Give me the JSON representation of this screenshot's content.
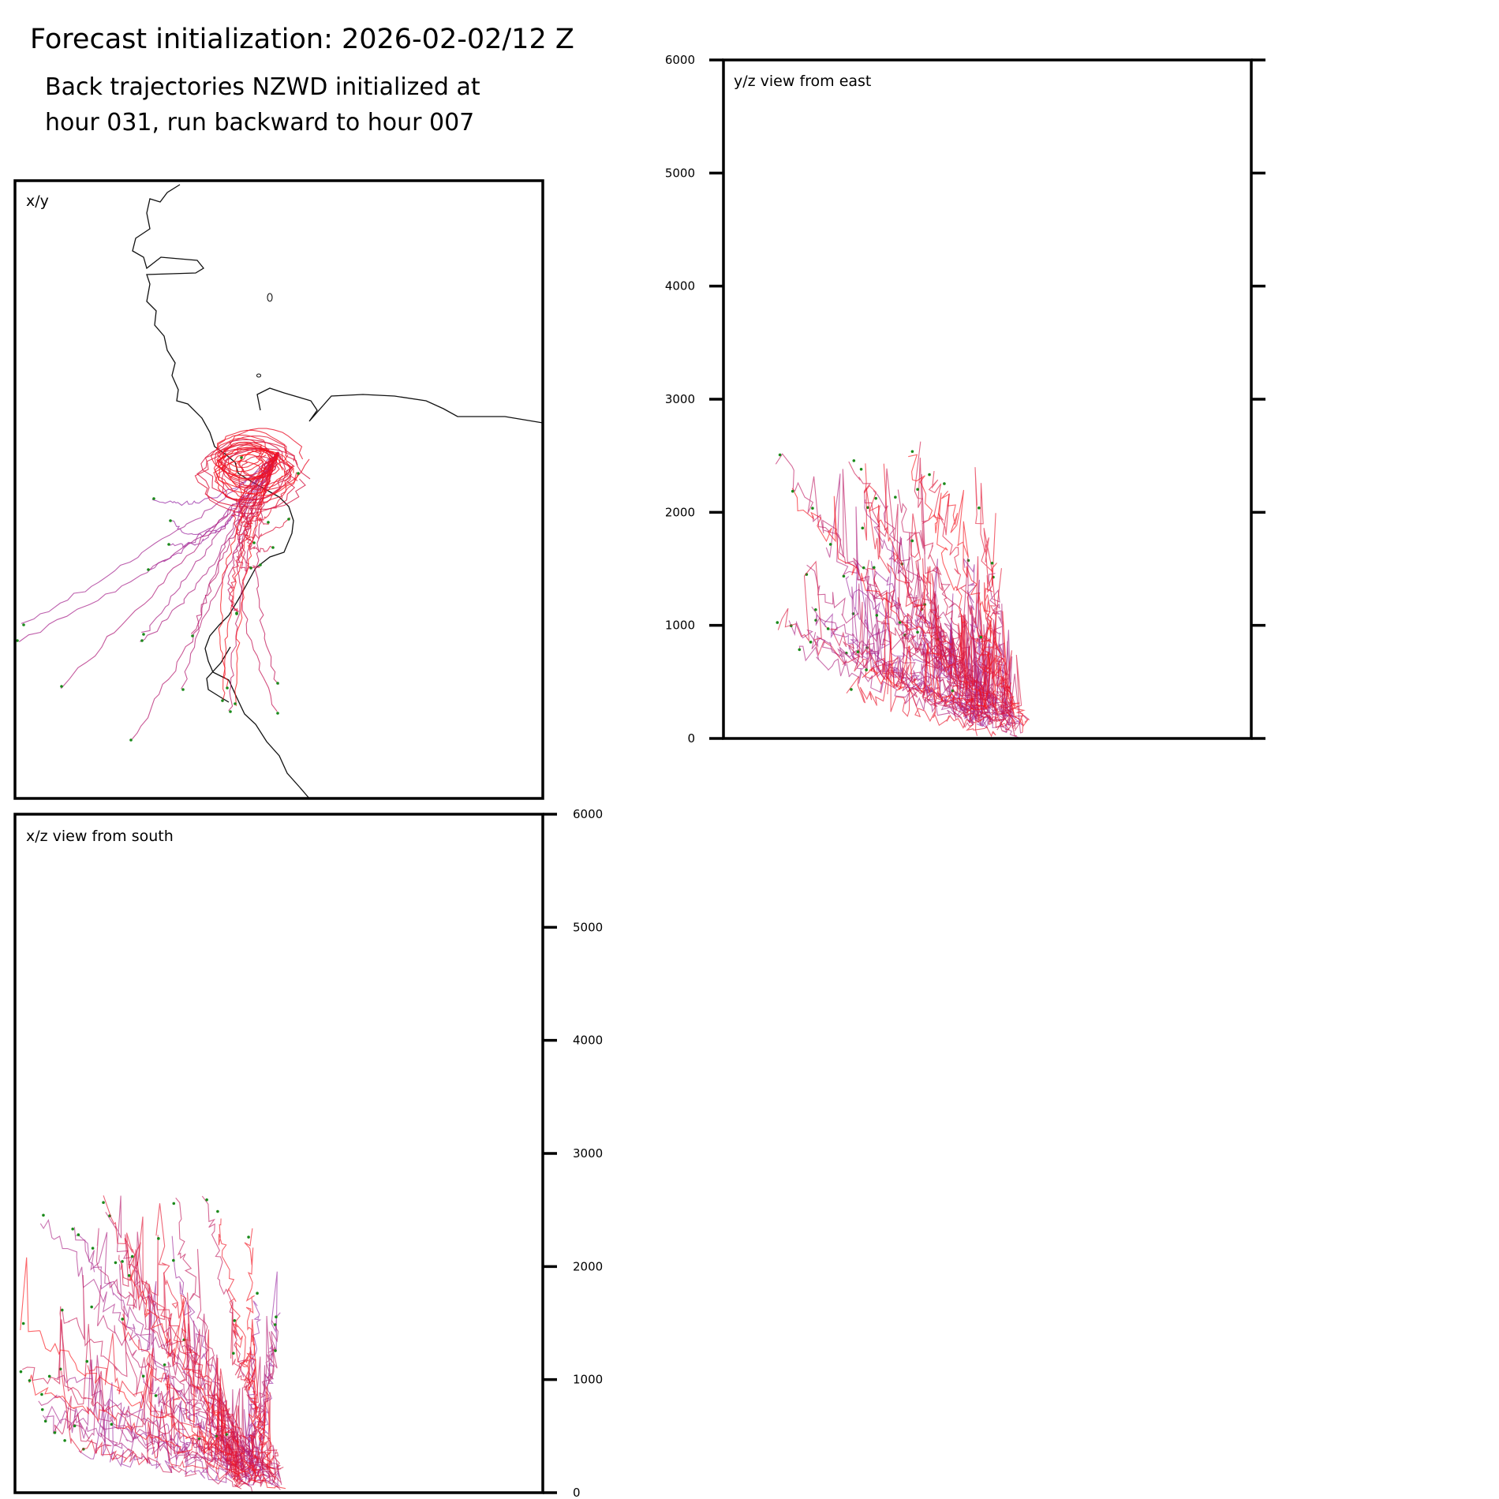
{
  "header": {
    "title": "Forecast initialization: 2026-02-02/12 Z",
    "subtitle_line1": "Back trajectories NZWD initialized at",
    "subtitle_line2": "hour 031, run backward to hour 007"
  },
  "colors": {
    "coastline": "#111111",
    "traj_early": "#9b30a8",
    "traj_mid": "#c2185b",
    "traj_late": "#ff1010",
    "start_marker": "#1a8a1a",
    "frame": "#000000"
  },
  "chart_data": [
    {
      "type": "map-trajectories",
      "panel": "xy",
      "label": "x/y",
      "grid": false
    },
    {
      "type": "line",
      "panel": "yz",
      "label": "y/z view from east",
      "ylim": [
        0,
        6000
      ],
      "yticks": [
        "0",
        "1000",
        "2000",
        "3000",
        "4000",
        "5000",
        "6000"
      ],
      "grid": false
    },
    {
      "type": "line",
      "panel": "xz",
      "label": "x/z view from south",
      "ylim": [
        0,
        6000
      ],
      "yticks": [
        "0",
        "1000",
        "2000",
        "3000",
        "4000",
        "5000",
        "6000"
      ],
      "grid": false
    }
  ]
}
